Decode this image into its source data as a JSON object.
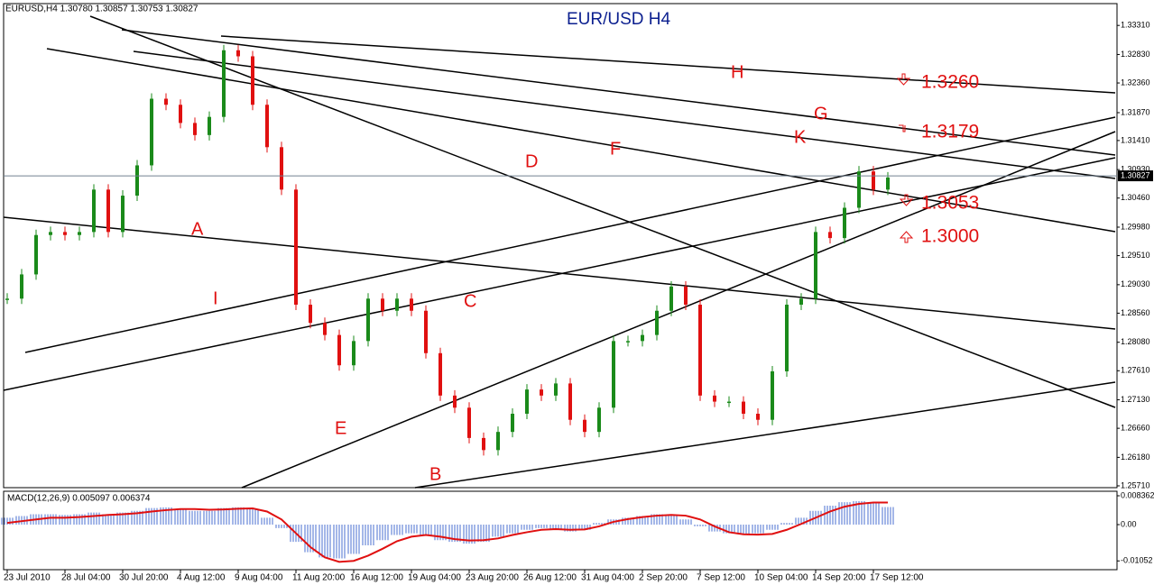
{
  "chart_data": [
    {
      "type": "line",
      "title": "EUR/USD  H4",
      "header": "EURUSD,H4  1.30780 1.30857 1.30753 1.30827",
      "categories": [
        "23 Jul 2010",
        null,
        null,
        null,
        "28 Jul 04:00",
        null,
        null,
        null,
        "30 Jul 20:00",
        null,
        null,
        null,
        "4 Aug 12:00",
        null,
        null,
        null,
        "9 Aug 04:00",
        null,
        null,
        null,
        "11 Aug 20:00",
        null,
        null,
        null,
        "16 Aug 12:00",
        null,
        null,
        null,
        "19 Aug 04:00",
        null,
        null,
        null,
        "23 Aug 20:00",
        null,
        null,
        null,
        "26 Aug 12:00",
        null,
        null,
        null,
        "31 Aug 04:00",
        null,
        null,
        null,
        "2 Sep 20:00",
        null,
        null,
        null,
        "7 Sep 12:00",
        null,
        null,
        null,
        "10 Sep 04:00",
        null,
        null,
        null,
        "14 Sep 20:00",
        null,
        null,
        null,
        "17 Sep 12:00",
        null
      ],
      "series": [
        {
          "name": "EURUSD",
          "up_color": "#1a8a1a",
          "down_color": "#e01010",
          "values": [
            1.288,
            1.292,
            1.2985,
            1.299,
            1.2985,
            1.299,
            1.306,
            1.299,
            1.305,
            1.31,
            1.321,
            1.32,
            1.317,
            1.315,
            1.318,
            1.329,
            1.328,
            1.32,
            1.313,
            1.306,
            1.287,
            1.284,
            1.282,
            1.277,
            1.281,
            1.288,
            1.286,
            1.288,
            1.286,
            1.279,
            1.272,
            1.27,
            1.265,
            1.263,
            1.266,
            1.269,
            1.273,
            1.272,
            1.274,
            1.268,
            1.266,
            1.27,
            1.281,
            1.281,
            1.282,
            1.286,
            1.29,
            1.287,
            1.272,
            1.271,
            1.271,
            1.269,
            1.268,
            1.276,
            1.287,
            1.288,
            1.299,
            1.298,
            1.303,
            1.309,
            1.306,
            1.308
          ]
        }
      ],
      "current_price": 1.30827,
      "ylim": [
        1.2568,
        1.3367
      ],
      "yticks": [
        {
          "value": 1.3331,
          "label": "1.33310"
        },
        {
          "value": 1.3283,
          "label": "1.32830"
        },
        {
          "value": 1.3236,
          "label": "1.32360"
        },
        {
          "value": 1.3187,
          "label": "1.31870"
        },
        {
          "value": 1.3141,
          "label": "1.31410"
        },
        {
          "value": 1.3093,
          "label": "1.30930"
        },
        {
          "value": 1.3046,
          "label": "1.30460"
        },
        {
          "value": 1.2998,
          "label": "1.29980"
        },
        {
          "value": 1.2951,
          "label": "1.29510"
        },
        {
          "value": 1.2903,
          "label": "1.29030"
        },
        {
          "value": 1.2856,
          "label": "1.28560"
        },
        {
          "value": 1.2808,
          "label": "1.28080"
        },
        {
          "value": 1.2761,
          "label": "1.27610"
        },
        {
          "value": 1.2713,
          "label": "1.27130"
        },
        {
          "value": 1.2666,
          "label": "1.26660"
        },
        {
          "value": 1.2618,
          "label": "1.26180"
        },
        {
          "value": 1.2571,
          "label": "1.25710"
        }
      ],
      "annotations": [
        "A",
        "B",
        "C",
        "D",
        "E",
        "F",
        "G",
        "H",
        "I",
        "K"
      ],
      "levels": [
        "1.3260",
        "1.3179",
        "1.3053",
        "1.3000"
      ]
    },
    {
      "type": "macd",
      "header": "MACD(12,26,9) 0.005097 0.006374",
      "series": [
        {
          "name": "MACD",
          "color": "#4a6fd0",
          "values": [
            0.002,
            0.0025,
            0.003,
            0.003,
            0.0028,
            0.003,
            0.0035,
            0.003,
            0.0035,
            0.004,
            0.0048,
            0.005,
            0.0045,
            0.004,
            0.004,
            0.0048,
            0.005,
            0.0045,
            0.002,
            -0.001,
            -0.005,
            -0.008,
            -0.0095,
            -0.0098,
            -0.0085,
            -0.006,
            -0.0045,
            -0.003,
            -0.0025,
            -0.003,
            -0.0045,
            -0.005,
            -0.0055,
            -0.005,
            -0.0035,
            -0.0025,
            -0.0015,
            -0.001,
            -0.0015,
            -0.002,
            -0.0015,
            0.0005,
            0.0015,
            0.002,
            0.0025,
            0.003,
            0.0028,
            0.0015,
            -0.0005,
            -0.002,
            -0.0025,
            -0.0028,
            -0.0025,
            -0.0015,
            0.0005,
            0.002,
            0.004,
            0.0055,
            0.0065,
            0.0068,
            0.0063,
            0.0051
          ]
        },
        {
          "name": "Signal",
          "color": "#e01010",
          "values": [
            0.0005,
            0.001,
            0.0015,
            0.002,
            0.002,
            0.0022,
            0.0025,
            0.0028,
            0.003,
            0.0033,
            0.0038,
            0.0042,
            0.0045,
            0.0045,
            0.0043,
            0.0044,
            0.0046,
            0.0047,
            0.0038,
            0.0015,
            -0.0025,
            -0.0065,
            -0.0095,
            -0.0108,
            -0.0105,
            -0.009,
            -0.007,
            -0.0048,
            -0.0035,
            -0.003,
            -0.0035,
            -0.0042,
            -0.0046,
            -0.0045,
            -0.004,
            -0.003,
            -0.0022,
            -0.0015,
            -0.0013,
            -0.0015,
            -0.0014,
            -0.0005,
            0.0008,
            0.0016,
            0.0022,
            0.0026,
            0.0028,
            0.0026,
            0.0015,
            -0.0005,
            -0.0022,
            -0.0028,
            -0.0029,
            -0.0027,
            -0.0015,
            0.0002,
            0.002,
            0.0038,
            0.0052,
            0.006,
            0.0064,
            0.0064
          ]
        }
      ],
      "ylim": [
        -0.01306,
        0.00967
      ],
      "yticks": [
        0.008362,
        {
          "value": 0,
          "label": "0.00"
        },
        -0.01052
      ]
    }
  ]
}
